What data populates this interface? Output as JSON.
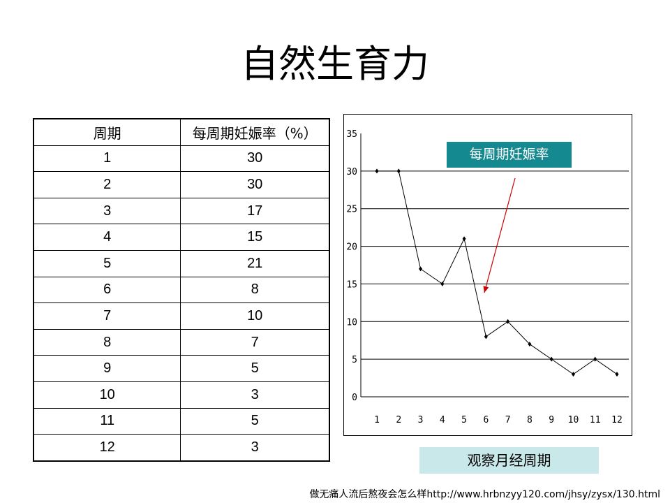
{
  "title": "自然生育力",
  "table": {
    "headers": [
      "周期",
      "每周期妊娠率（%）"
    ],
    "rows": [
      [
        "1",
        "30"
      ],
      [
        "2",
        "30"
      ],
      [
        "3",
        "17"
      ],
      [
        "4",
        "15"
      ],
      [
        "5",
        "21"
      ],
      [
        "6",
        "8"
      ],
      [
        "7",
        "10"
      ],
      [
        "8",
        "7"
      ],
      [
        "9",
        "5"
      ],
      [
        "10",
        "3"
      ],
      [
        "11",
        "5"
      ],
      [
        "12",
        "3"
      ]
    ]
  },
  "chart_data": {
    "type": "line",
    "categories": [
      "1",
      "2",
      "3",
      "4",
      "5",
      "6",
      "7",
      "8",
      "9",
      "10",
      "11",
      "12"
    ],
    "series": [
      {
        "name": "每周期妊娠率",
        "values": [
          30,
          30,
          17,
          15,
          21,
          8,
          10,
          7,
          5,
          3,
          5,
          3
        ]
      }
    ],
    "xlabel": "观察月经周期",
    "ylabel": "",
    "ylim": [
      0,
      35
    ],
    "yticks": [
      "0",
      "5",
      "10",
      "15",
      "20",
      "25",
      "30",
      "35"
    ],
    "grid": true,
    "colors": {
      "line": "#000000",
      "arrow": "#cc0000",
      "legend_bg": "#14898f",
      "xlabel_bg": "#c9e8ea"
    }
  },
  "footer": "做无痛人流后熬夜会怎么样http://www.hrbnzyy120.com/jhsy/zysx/130.html"
}
